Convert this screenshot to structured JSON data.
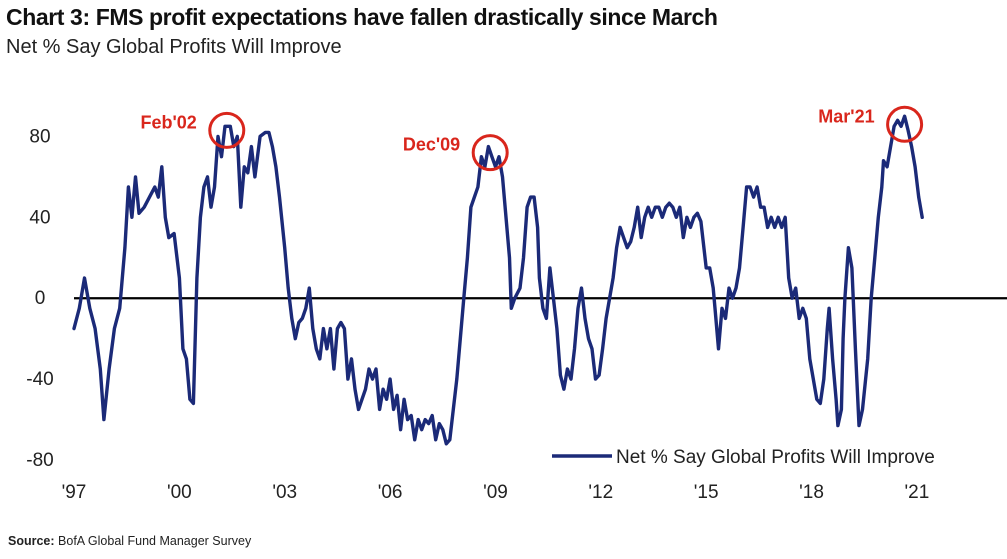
{
  "chart_data": {
    "type": "line",
    "title": "Chart 3: FMS profit expectations have fallen drastically since March",
    "subtitle": "Net % Say Global Profits Will Improve",
    "xlabel": "",
    "ylabel": "",
    "x_range": [
      1997.0,
      2021.8
    ],
    "ylim": [
      -80,
      100
    ],
    "y_ticks": [
      -80,
      -40,
      0,
      40,
      80
    ],
    "x_ticks": [
      {
        "value": 1997,
        "label": "'97"
      },
      {
        "value": 2000,
        "label": "'00"
      },
      {
        "value": 2003,
        "label": "'03"
      },
      {
        "value": 2006,
        "label": "'06"
      },
      {
        "value": 2009,
        "label": "'09"
      },
      {
        "value": 2012,
        "label": "'12"
      },
      {
        "value": 2015,
        "label": "'15"
      },
      {
        "value": 2018,
        "label": "'18"
      },
      {
        "value": 2021,
        "label": "'21"
      }
    ],
    "legend": {
      "position": "bottom-right",
      "label": "Net % Say Global Profits Will Improve"
    },
    "series": [
      {
        "name": "Net % Say Global Profits Will Improve",
        "color": "#1b2a78",
        "points": [
          [
            1997.0,
            -15
          ],
          [
            1997.15,
            -5
          ],
          [
            1997.3,
            10
          ],
          [
            1997.45,
            -5
          ],
          [
            1997.6,
            -15
          ],
          [
            1997.75,
            -35
          ],
          [
            1997.85,
            -60
          ],
          [
            1998.0,
            -35
          ],
          [
            1998.15,
            -15
          ],
          [
            1998.3,
            -5
          ],
          [
            1998.45,
            25
          ],
          [
            1998.55,
            55
          ],
          [
            1998.65,
            40
          ],
          [
            1998.75,
            60
          ],
          [
            1998.85,
            42
          ],
          [
            1999.0,
            45
          ],
          [
            1999.15,
            50
          ],
          [
            1999.3,
            55
          ],
          [
            1999.4,
            50
          ],
          [
            1999.5,
            65
          ],
          [
            1999.6,
            40
          ],
          [
            1999.7,
            30
          ],
          [
            1999.85,
            32
          ],
          [
            2000.0,
            10
          ],
          [
            2000.1,
            -25
          ],
          [
            2000.2,
            -30
          ],
          [
            2000.3,
            -50
          ],
          [
            2000.4,
            -52
          ],
          [
            2000.5,
            10
          ],
          [
            2000.6,
            40
          ],
          [
            2000.7,
            55
          ],
          [
            2000.8,
            60
          ],
          [
            2000.9,
            45
          ],
          [
            2001.0,
            55
          ],
          [
            2001.1,
            80
          ],
          [
            2001.2,
            70
          ],
          [
            2001.3,
            85
          ],
          [
            2001.45,
            85
          ],
          [
            2001.55,
            75
          ],
          [
            2001.65,
            80
          ],
          [
            2001.75,
            45
          ],
          [
            2001.85,
            65
          ],
          [
            2001.95,
            62
          ],
          [
            2002.05,
            75
          ],
          [
            2002.15,
            60
          ],
          [
            2002.3,
            80
          ],
          [
            2002.45,
            82
          ],
          [
            2002.55,
            82
          ],
          [
            2002.65,
            75
          ],
          [
            2002.75,
            65
          ],
          [
            2002.85,
            50
          ],
          [
            2003.0,
            25
          ],
          [
            2003.1,
            5
          ],
          [
            2003.2,
            -10
          ],
          [
            2003.3,
            -20
          ],
          [
            2003.4,
            -12
          ],
          [
            2003.5,
            -10
          ],
          [
            2003.6,
            -5
          ],
          [
            2003.7,
            5
          ],
          [
            2003.8,
            -15
          ],
          [
            2003.9,
            -25
          ],
          [
            2004.0,
            -30
          ],
          [
            2004.1,
            -15
          ],
          [
            2004.2,
            -25
          ],
          [
            2004.3,
            -15
          ],
          [
            2004.4,
            -35
          ],
          [
            2004.5,
            -15
          ],
          [
            2004.6,
            -12
          ],
          [
            2004.7,
            -15
          ],
          [
            2004.8,
            -40
          ],
          [
            2004.9,
            -30
          ],
          [
            2005.0,
            -45
          ],
          [
            2005.1,
            -55
          ],
          [
            2005.2,
            -50
          ],
          [
            2005.3,
            -45
          ],
          [
            2005.4,
            -35
          ],
          [
            2005.5,
            -40
          ],
          [
            2005.6,
            -35
          ],
          [
            2005.7,
            -55
          ],
          [
            2005.8,
            -45
          ],
          [
            2005.9,
            -50
          ],
          [
            2006.0,
            -40
          ],
          [
            2006.1,
            -55
          ],
          [
            2006.2,
            -48
          ],
          [
            2006.3,
            -65
          ],
          [
            2006.4,
            -50
          ],
          [
            2006.5,
            -60
          ],
          [
            2006.6,
            -58
          ],
          [
            2006.7,
            -70
          ],
          [
            2006.8,
            -60
          ],
          [
            2006.9,
            -65
          ],
          [
            2007.0,
            -60
          ],
          [
            2007.1,
            -62
          ],
          [
            2007.2,
            -58
          ],
          [
            2007.3,
            -70
          ],
          [
            2007.4,
            -62
          ],
          [
            2007.5,
            -65
          ],
          [
            2007.6,
            -72
          ],
          [
            2007.7,
            -70
          ],
          [
            2007.8,
            -55
          ],
          [
            2007.9,
            -40
          ],
          [
            2008.0,
            -20
          ],
          [
            2008.1,
            0
          ],
          [
            2008.2,
            20
          ],
          [
            2008.3,
            45
          ],
          [
            2008.4,
            50
          ],
          [
            2008.5,
            55
          ],
          [
            2008.6,
            70
          ],
          [
            2008.7,
            65
          ],
          [
            2008.8,
            75
          ],
          [
            2008.9,
            70
          ],
          [
            2009.0,
            65
          ],
          [
            2009.1,
            70
          ],
          [
            2009.2,
            60
          ],
          [
            2009.3,
            40
          ],
          [
            2009.4,
            20
          ],
          [
            2009.45,
            -5
          ],
          [
            2009.55,
            0
          ],
          [
            2009.7,
            5
          ],
          [
            2009.8,
            20
          ],
          [
            2009.9,
            45
          ],
          [
            2010.0,
            50
          ],
          [
            2010.1,
            50
          ],
          [
            2010.2,
            35
          ],
          [
            2010.25,
            10
          ],
          [
            2010.35,
            -5
          ],
          [
            2010.45,
            -10
          ],
          [
            2010.55,
            15
          ],
          [
            2010.65,
            0
          ],
          [
            2010.75,
            -15
          ],
          [
            2010.85,
            -38
          ],
          [
            2010.95,
            -45
          ],
          [
            2011.05,
            -35
          ],
          [
            2011.15,
            -40
          ],
          [
            2011.25,
            -25
          ],
          [
            2011.35,
            -5
          ],
          [
            2011.45,
            5
          ],
          [
            2011.55,
            -10
          ],
          [
            2011.65,
            -20
          ],
          [
            2011.75,
            -25
          ],
          [
            2011.85,
            -40
          ],
          [
            2011.95,
            -38
          ],
          [
            2012.05,
            -25
          ],
          [
            2012.15,
            -10
          ],
          [
            2012.25,
            0
          ],
          [
            2012.35,
            10
          ],
          [
            2012.45,
            25
          ],
          [
            2012.55,
            35
          ],
          [
            2012.65,
            30
          ],
          [
            2012.75,
            25
          ],
          [
            2012.85,
            28
          ],
          [
            2012.95,
            35
          ],
          [
            2013.05,
            45
          ],
          [
            2013.15,
            30
          ],
          [
            2013.25,
            40
          ],
          [
            2013.35,
            45
          ],
          [
            2013.45,
            40
          ],
          [
            2013.55,
            45
          ],
          [
            2013.65,
            45
          ],
          [
            2013.75,
            40
          ],
          [
            2013.85,
            45
          ],
          [
            2013.95,
            47
          ],
          [
            2014.05,
            45
          ],
          [
            2014.15,
            40
          ],
          [
            2014.25,
            45
          ],
          [
            2014.35,
            30
          ],
          [
            2014.45,
            40
          ],
          [
            2014.55,
            35
          ],
          [
            2014.65,
            40
          ],
          [
            2014.75,
            42
          ],
          [
            2014.85,
            38
          ],
          [
            2015.0,
            15
          ],
          [
            2015.1,
            15
          ],
          [
            2015.2,
            5
          ],
          [
            2015.25,
            -5
          ],
          [
            2015.35,
            -25
          ],
          [
            2015.45,
            -5
          ],
          [
            2015.55,
            -10
          ],
          [
            2015.65,
            5
          ],
          [
            2015.75,
            0
          ],
          [
            2015.85,
            5
          ],
          [
            2015.95,
            15
          ],
          [
            2016.05,
            35
          ],
          [
            2016.15,
            55
          ],
          [
            2016.25,
            55
          ],
          [
            2016.35,
            50
          ],
          [
            2016.45,
            55
          ],
          [
            2016.55,
            45
          ],
          [
            2016.65,
            45
          ],
          [
            2016.75,
            35
          ],
          [
            2016.85,
            40
          ],
          [
            2016.95,
            35
          ],
          [
            2017.05,
            40
          ],
          [
            2017.15,
            35
          ],
          [
            2017.25,
            40
          ],
          [
            2017.35,
            10
          ],
          [
            2017.45,
            0
          ],
          [
            2017.55,
            5
          ],
          [
            2017.65,
            -10
          ],
          [
            2017.75,
            -5
          ],
          [
            2017.85,
            -10
          ],
          [
            2017.95,
            -30
          ],
          [
            2018.05,
            -40
          ],
          [
            2018.15,
            -50
          ],
          [
            2018.25,
            -52
          ],
          [
            2018.35,
            -40
          ],
          [
            2018.45,
            -15
          ],
          [
            2018.5,
            -5
          ],
          [
            2018.6,
            -30
          ],
          [
            2018.7,
            -50
          ],
          [
            2018.75,
            -63
          ],
          [
            2018.85,
            -55
          ],
          [
            2018.9,
            -20
          ],
          [
            2018.95,
            0
          ],
          [
            2019.05,
            25
          ],
          [
            2019.15,
            15
          ],
          [
            2019.25,
            -25
          ],
          [
            2019.35,
            -63
          ],
          [
            2019.45,
            -55
          ],
          [
            2019.6,
            -30
          ],
          [
            2019.7,
            0
          ],
          [
            2019.8,
            20
          ],
          [
            2019.9,
            40
          ],
          [
            2020.0,
            55
          ],
          [
            2020.05,
            68
          ],
          [
            2020.15,
            65
          ],
          [
            2020.25,
            75
          ],
          [
            2020.35,
            85
          ],
          [
            2020.45,
            88
          ],
          [
            2020.55,
            85
          ],
          [
            2020.65,
            90
          ],
          [
            2020.75,
            83
          ],
          [
            2020.85,
            75
          ],
          [
            2020.95,
            65
          ],
          [
            2021.05,
            50
          ],
          [
            2021.15,
            40
          ]
        ]
      }
    ],
    "annotations": [
      {
        "label": "Feb'02",
        "x": 2001.35,
        "y": 83,
        "color": "#d9261c"
      },
      {
        "label": "Dec'09",
        "x": 2008.85,
        "y": 72,
        "color": "#d9261c"
      },
      {
        "label": "Mar'21",
        "x": 2020.65,
        "y": 86,
        "color": "#d9261c"
      }
    ]
  },
  "source": {
    "prefix": "Source:",
    "text": "BofA Global Fund Manager Survey"
  }
}
